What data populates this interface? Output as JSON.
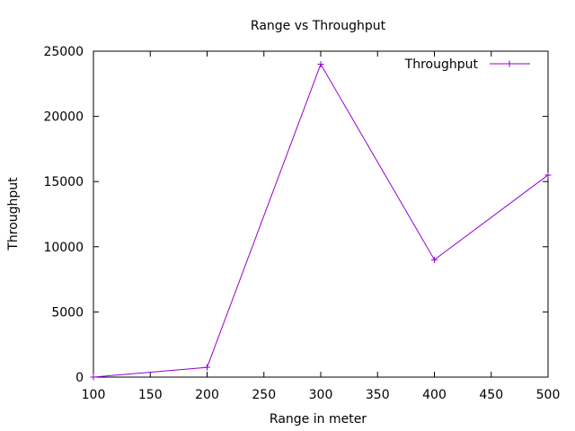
{
  "chart_data": {
    "type": "line",
    "title": "Range vs Throughput",
    "xlabel": "Range in meter",
    "ylabel": "Throughput",
    "xlim": [
      100,
      500
    ],
    "ylim": [
      0,
      25000
    ],
    "xticks": [
      100,
      150,
      200,
      250,
      300,
      350,
      400,
      450,
      500
    ],
    "yticks": [
      0,
      5000,
      10000,
      15000,
      20000,
      25000
    ],
    "xtick_labels": [
      "100",
      "150",
      "200",
      "250",
      "300",
      "350",
      "400",
      "450",
      "500"
    ],
    "ytick_labels": [
      "0",
      "5000",
      "10000",
      "15000",
      "20000",
      "25000"
    ],
    "grid": false,
    "legend_position": "top-right",
    "series": [
      {
        "name": "Throughput",
        "color": "#9400d3",
        "marker": "plus",
        "x": [
          100,
          200,
          300,
          400,
          500
        ],
        "y": [
          0,
          750,
          24000,
          9000,
          15500
        ]
      }
    ]
  }
}
